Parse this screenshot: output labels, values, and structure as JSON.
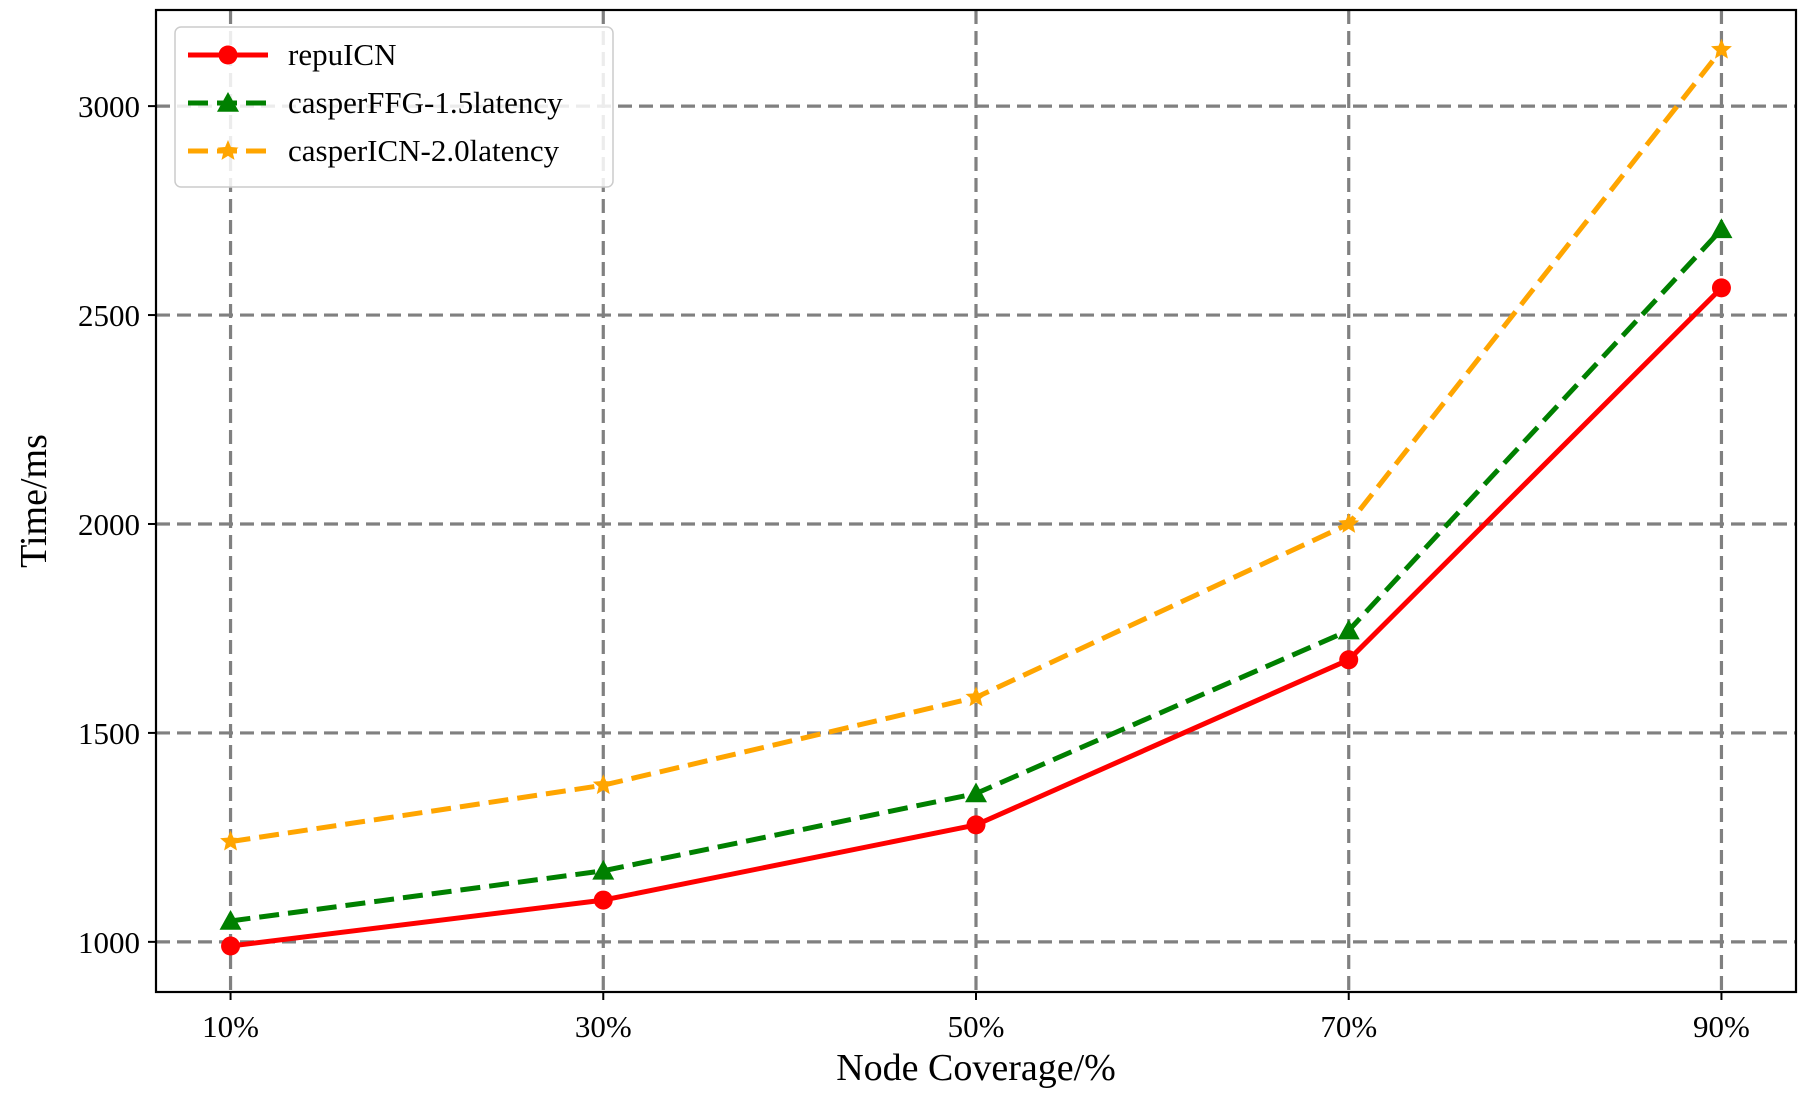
{
  "chart_data": {
    "type": "line",
    "title": "",
    "xlabel": "Node Coverage/%",
    "ylabel": "Time/ms",
    "categories": [
      "10%",
      "30%",
      "50%",
      "70%",
      "90%"
    ],
    "x": [
      10,
      30,
      50,
      70,
      90
    ],
    "xlim": [
      6,
      94
    ],
    "ylim": [
      880,
      3230
    ],
    "yticks": [
      1000,
      1500,
      2000,
      2500,
      3000
    ],
    "grid": true,
    "legend_position": "top-left",
    "series": [
      {
        "name": "repuICN",
        "color": "#ff0000",
        "marker": "circle",
        "linestyle": "solid",
        "values": [
          990,
          1100,
          1280,
          1675,
          2565
        ]
      },
      {
        "name": "casperFFG-1.5latency",
        "color": "#008000",
        "marker": "triangle",
        "linestyle": "dashed",
        "values": [
          1050,
          1170,
          1355,
          1745,
          2705
        ]
      },
      {
        "name": "casperICN-2.0latency",
        "color": "#ffa500",
        "marker": "star",
        "linestyle": "dashed",
        "values": [
          1240,
          1375,
          1585,
          2000,
          3135
        ]
      }
    ]
  }
}
